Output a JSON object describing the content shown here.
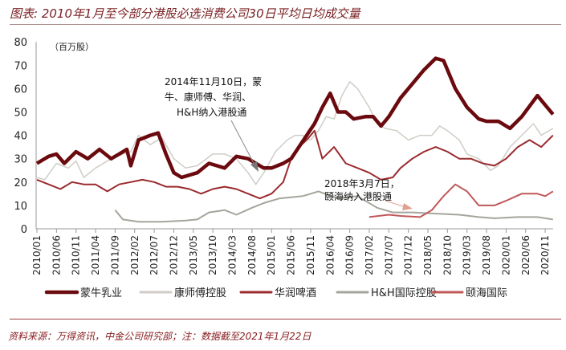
{
  "header": {
    "title": "图表: 2010年1月至今部分港股必选消费公司30日平均日均成交量"
  },
  "footer": {
    "source": "资料来源：万得资讯，中金公司研究部；注：数据截至2021年1月22日"
  },
  "chart_data": {
    "type": "line",
    "title": "图表: 2010年1月至今部分港股必选消费公司30日平均日均成交量",
    "unit_label": "（百万股）",
    "ylim": [
      0,
      80
    ],
    "yticks": [
      0,
      10,
      20,
      30,
      40,
      50,
      60,
      70,
      80
    ],
    "xlim": [
      "2010-01",
      "2021-01"
    ],
    "xtick_labels": [
      "2010/01",
      "2010/06",
      "2010/11",
      "2011/04",
      "2011/09",
      "2012/02",
      "2012/07",
      "2012/12",
      "2013/05",
      "2013/10",
      "2014/03",
      "2014/08",
      "2015/01",
      "2015/06",
      "2015/11",
      "2016/04",
      "2016/09",
      "2017/02",
      "2017/07",
      "2017/12",
      "2018/05",
      "2018/10",
      "2019/03",
      "2019/08",
      "2020/01",
      "2020/06",
      "2020/11"
    ],
    "grid": false,
    "legend": "bottom",
    "annotations": [
      {
        "text_lines": [
          "2014年11月10日，蒙",
          "牛、康师傅、华润、",
          "H&H纳入港股通"
        ],
        "date": "2014-11",
        "value": 25
      },
      {
        "text_lines": [
          "2018年3月7日，",
          "颐海纳入港股通"
        ],
        "date": "2018-03",
        "value": 6
      }
    ],
    "series": [
      {
        "name": "蒙牛乳业",
        "color": "#6b0a0e",
        "width": 4.5,
        "points": [
          [
            "2010-01",
            28
          ],
          [
            "2010-04",
            31
          ],
          [
            "2010-06",
            32
          ],
          [
            "2010-08",
            28
          ],
          [
            "2010-11",
            33
          ],
          [
            "2011-02",
            30
          ],
          [
            "2011-05",
            34
          ],
          [
            "2011-08",
            30
          ],
          [
            "2011-10",
            32
          ],
          [
            "2011-12",
            34
          ],
          [
            "2012-01",
            27
          ],
          [
            "2012-03",
            38
          ],
          [
            "2012-06",
            40
          ],
          [
            "2012-08",
            41
          ],
          [
            "2012-10",
            32
          ],
          [
            "2012-12",
            24
          ],
          [
            "2013-02",
            22
          ],
          [
            "2013-06",
            24
          ],
          [
            "2013-09",
            28
          ],
          [
            "2013-11",
            27
          ],
          [
            "2014-01",
            26
          ],
          [
            "2014-04",
            31
          ],
          [
            "2014-07",
            30
          ],
          [
            "2014-09",
            28
          ],
          [
            "2014-11",
            26
          ],
          [
            "2015-01",
            26
          ],
          [
            "2015-04",
            28
          ],
          [
            "2015-06",
            30
          ],
          [
            "2015-08",
            35
          ],
          [
            "2015-10",
            40
          ],
          [
            "2015-12",
            45
          ],
          [
            "2016-02",
            52
          ],
          [
            "2016-04",
            58
          ],
          [
            "2016-06",
            50
          ],
          [
            "2016-08",
            50
          ],
          [
            "2016-10",
            47
          ],
          [
            "2017-01",
            48
          ],
          [
            "2017-03",
            48
          ],
          [
            "2017-05",
            44
          ],
          [
            "2017-07",
            48
          ],
          [
            "2017-10",
            56
          ],
          [
            "2018-01",
            62
          ],
          [
            "2018-04",
            68
          ],
          [
            "2018-07",
            73
          ],
          [
            "2018-09",
            72
          ],
          [
            "2018-12",
            60
          ],
          [
            "2019-03",
            52
          ],
          [
            "2019-06",
            47
          ],
          [
            "2019-08",
            46
          ],
          [
            "2019-11",
            46
          ],
          [
            "2020-02",
            43
          ],
          [
            "2020-05",
            48
          ],
          [
            "2020-09",
            57
          ],
          [
            "2020-11",
            53
          ],
          [
            "2021-01",
            49
          ]
        ]
      },
      {
        "name": "康师傅控股",
        "color": "#cfcdc6",
        "width": 1.5,
        "points": [
          [
            "2010-01",
            22
          ],
          [
            "2010-03",
            21
          ],
          [
            "2010-06",
            28
          ],
          [
            "2010-09",
            26
          ],
          [
            "2010-11",
            29
          ],
          [
            "2011-01",
            22
          ],
          [
            "2011-04",
            26
          ],
          [
            "2011-08",
            30
          ],
          [
            "2011-11",
            32
          ],
          [
            "2012-01",
            33
          ],
          [
            "2012-03",
            40
          ],
          [
            "2012-06",
            36
          ],
          [
            "2012-09",
            39
          ],
          [
            "2012-12",
            30
          ],
          [
            "2013-03",
            26
          ],
          [
            "2013-06",
            27
          ],
          [
            "2013-10",
            32
          ],
          [
            "2014-01",
            32
          ],
          [
            "2014-04",
            30
          ],
          [
            "2014-07",
            24
          ],
          [
            "2014-09",
            19
          ],
          [
            "2014-11",
            24
          ],
          [
            "2015-02",
            33
          ],
          [
            "2015-05",
            38
          ],
          [
            "2015-07",
            40
          ],
          [
            "2015-09",
            40
          ],
          [
            "2015-11",
            38
          ],
          [
            "2016-01",
            42
          ],
          [
            "2016-03",
            48
          ],
          [
            "2016-05",
            47
          ],
          [
            "2016-07",
            57
          ],
          [
            "2016-09",
            63
          ],
          [
            "2016-11",
            60
          ],
          [
            "2017-02",
            52
          ],
          [
            "2017-04",
            45
          ],
          [
            "2017-06",
            43
          ],
          [
            "2017-09",
            42
          ],
          [
            "2017-12",
            38
          ],
          [
            "2018-03",
            40
          ],
          [
            "2018-06",
            40
          ],
          [
            "2018-08",
            44
          ],
          [
            "2018-10",
            42
          ],
          [
            "2019-01",
            38
          ],
          [
            "2019-03",
            32
          ],
          [
            "2019-06",
            30
          ],
          [
            "2019-09",
            25
          ],
          [
            "2019-11",
            27
          ],
          [
            "2020-02",
            35
          ],
          [
            "2020-05",
            40
          ],
          [
            "2020-08",
            45
          ],
          [
            "2020-10",
            40
          ],
          [
            "2021-01",
            43
          ]
        ]
      },
      {
        "name": "华润啤酒",
        "color": "#9b2a2e",
        "width": 2,
        "points": [
          [
            "2010-01",
            21
          ],
          [
            "2010-04",
            19
          ],
          [
            "2010-07",
            17
          ],
          [
            "2010-10",
            20
          ],
          [
            "2011-01",
            19
          ],
          [
            "2011-04",
            19
          ],
          [
            "2011-07",
            16
          ],
          [
            "2011-10",
            19
          ],
          [
            "2012-01",
            20
          ],
          [
            "2012-04",
            21
          ],
          [
            "2012-07",
            20
          ],
          [
            "2012-10",
            18
          ],
          [
            "2013-01",
            18
          ],
          [
            "2013-04",
            17
          ],
          [
            "2013-07",
            15
          ],
          [
            "2013-10",
            17
          ],
          [
            "2014-01",
            18
          ],
          [
            "2014-04",
            17
          ],
          [
            "2014-07",
            15
          ],
          [
            "2014-10",
            13
          ],
          [
            "2015-01",
            15
          ],
          [
            "2015-04",
            20
          ],
          [
            "2015-06",
            30
          ],
          [
            "2015-08",
            35
          ],
          [
            "2015-10",
            38
          ],
          [
            "2015-12",
            42
          ],
          [
            "2016-02",
            30
          ],
          [
            "2016-05",
            35
          ],
          [
            "2016-08",
            28
          ],
          [
            "2016-11",
            26
          ],
          [
            "2017-02",
            24
          ],
          [
            "2017-05",
            21
          ],
          [
            "2017-08",
            22
          ],
          [
            "2017-10",
            26
          ],
          [
            "2018-01",
            30
          ],
          [
            "2018-04",
            33
          ],
          [
            "2018-07",
            35
          ],
          [
            "2018-10",
            33
          ],
          [
            "2019-01",
            30
          ],
          [
            "2019-04",
            30
          ],
          [
            "2019-07",
            28
          ],
          [
            "2019-10",
            27
          ],
          [
            "2020-01",
            30
          ],
          [
            "2020-04",
            35
          ],
          [
            "2020-07",
            38
          ],
          [
            "2020-10",
            35
          ],
          [
            "2021-01",
            40
          ]
        ]
      },
      {
        "name": "H&H国际控股",
        "color": "#a6a59c",
        "width": 2,
        "points": [
          [
            "2011-09",
            8
          ],
          [
            "2011-11",
            4
          ],
          [
            "2012-03",
            3
          ],
          [
            "2012-09",
            3
          ],
          [
            "2013-03",
            3.5
          ],
          [
            "2013-06",
            4
          ],
          [
            "2013-09",
            7
          ],
          [
            "2014-01",
            8
          ],
          [
            "2014-04",
            6
          ],
          [
            "2014-08",
            9
          ],
          [
            "2014-11",
            11
          ],
          [
            "2015-03",
            13
          ],
          [
            "2015-09",
            14
          ],
          [
            "2016-01",
            16
          ],
          [
            "2016-06",
            13
          ],
          [
            "2016-11",
            14
          ],
          [
            "2017-04",
            9
          ],
          [
            "2017-08",
            7
          ],
          [
            "2018-01",
            7
          ],
          [
            "2018-07",
            6.5
          ],
          [
            "2019-01",
            6
          ],
          [
            "2019-06",
            5
          ],
          [
            "2019-10",
            4.5
          ],
          [
            "2020-04",
            5
          ],
          [
            "2020-09",
            5
          ],
          [
            "2021-01",
            4
          ]
        ]
      },
      {
        "name": "颐海国际",
        "color": "#c0585a",
        "width": 2,
        "points": [
          [
            "2017-02",
            5
          ],
          [
            "2017-07",
            6
          ],
          [
            "2017-10",
            5.5
          ],
          [
            "2018-03",
            5
          ],
          [
            "2018-06",
            8
          ],
          [
            "2018-09",
            14
          ],
          [
            "2018-12",
            19
          ],
          [
            "2019-03",
            16
          ],
          [
            "2019-06",
            10
          ],
          [
            "2019-10",
            10
          ],
          [
            "2020-01",
            12
          ],
          [
            "2020-05",
            15
          ],
          [
            "2020-09",
            15
          ],
          [
            "2020-11",
            14
          ],
          [
            "2021-01",
            16
          ]
        ]
      }
    ]
  }
}
